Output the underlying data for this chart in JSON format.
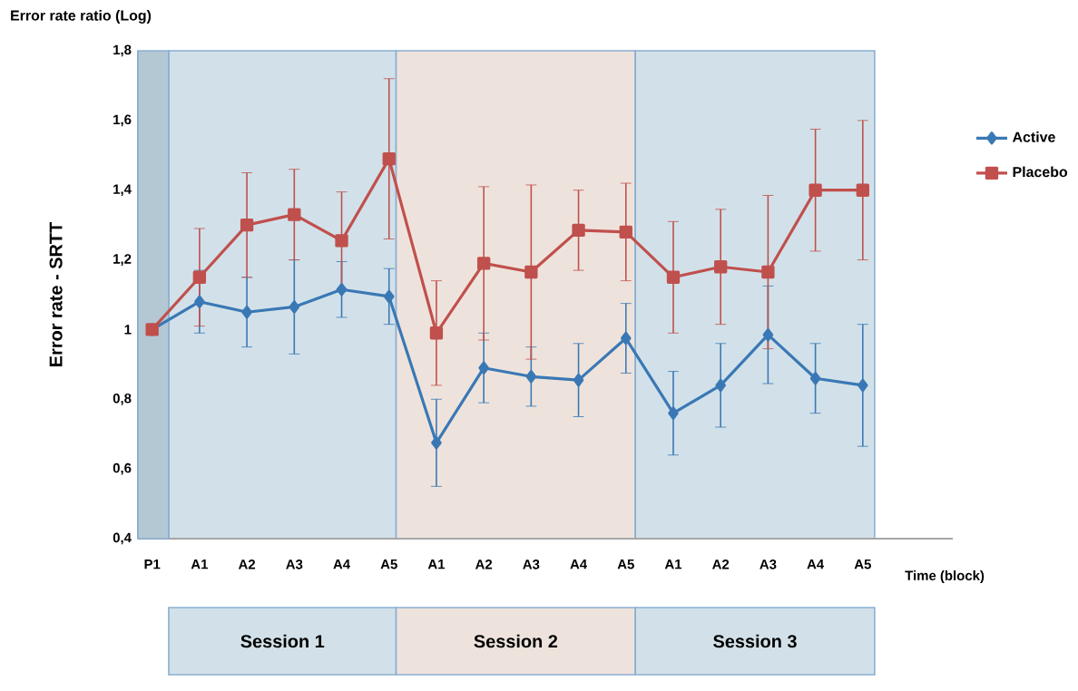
{
  "chart_data": {
    "type": "line",
    "annotations": [
      "Error rate ratio (Log)",
      "Session 1",
      "Session 2",
      "Session 3"
    ],
    "ylabel": "Error rate - SRTT",
    "xlabel": "Time (block)",
    "categories": [
      "P1",
      "A1",
      "A2",
      "A3",
      "A4",
      "A5",
      "A1",
      "A2",
      "A3",
      "A4",
      "A5",
      "A1",
      "A2",
      "A3",
      "A4",
      "A5"
    ],
    "ylim": [
      0.4,
      1.8
    ],
    "yticks": [
      {
        "value": 0.4,
        "label": "0,4"
      },
      {
        "value": 0.6,
        "label": "0,6"
      },
      {
        "value": 0.8,
        "label": "0,8"
      },
      1,
      {
        "value": 1.2,
        "label": "1,2"
      },
      {
        "value": 1.4,
        "label": "1,4"
      },
      {
        "value": 1.6,
        "label": "1,6"
      },
      {
        "value": 1.8,
        "label": "1,8"
      }
    ],
    "series": [
      {
        "name": "Active",
        "color": "#3a78b5",
        "marker": "diamond",
        "values": [
          1.0,
          1.08,
          1.05,
          1.065,
          1.115,
          1.095,
          0.675,
          0.89,
          0.865,
          0.855,
          0.975,
          0.76,
          0.84,
          0.985,
          0.86,
          0.84
        ],
        "errors": [
          null,
          0.09,
          0.1,
          0.135,
          0.08,
          0.08,
          0.125,
          0.1,
          0.085,
          0.105,
          0.1,
          0.12,
          0.12,
          0.14,
          0.1,
          0.175
        ]
      },
      {
        "name": "Placebo",
        "color": "#c0504d",
        "marker": "square",
        "values": [
          1.0,
          1.15,
          1.3,
          1.33,
          1.255,
          1.49,
          0.99,
          1.19,
          1.165,
          1.285,
          1.28,
          1.15,
          1.18,
          1.165,
          1.4,
          1.4
        ],
        "errors": [
          null,
          0.14,
          0.15,
          0.13,
          0.14,
          0.23,
          0.15,
          0.22,
          0.25,
          0.115,
          0.14,
          0.16,
          0.165,
          0.22,
          0.175,
          0.2
        ]
      }
    ],
    "bands": [
      {
        "axis": "x",
        "from": "P1",
        "to": "P1",
        "color": "#b4c8d3"
      }
    ],
    "legend": "right",
    "grid": false,
    "line_style": "solid"
  }
}
